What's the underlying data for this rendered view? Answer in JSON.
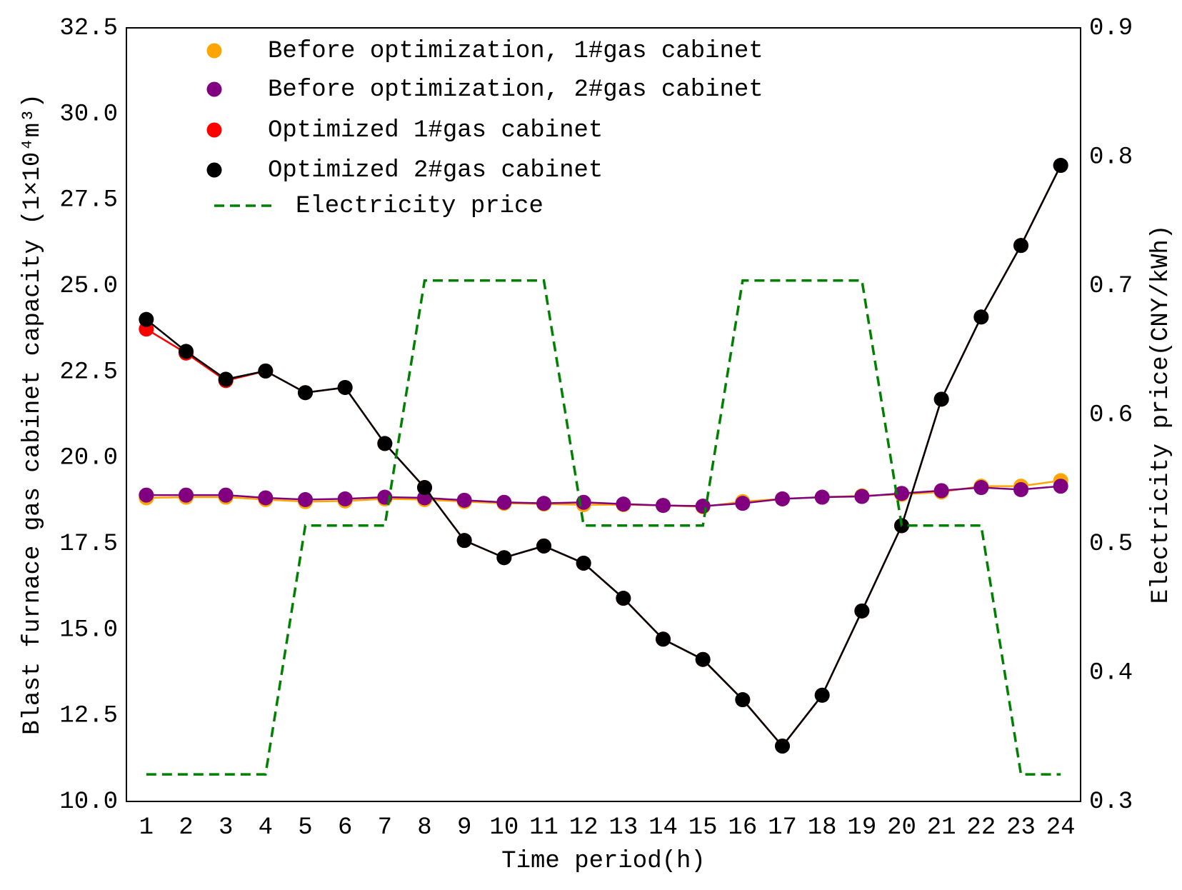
{
  "chart_data": {
    "type": "line",
    "xlabel": "Time period(h)",
    "ylabel": "Blast furnace gas cabinet capacity (1×10⁴m³)",
    "y2label": "Electricity price(CNY/kWh)",
    "x": [
      1,
      2,
      3,
      4,
      5,
      6,
      7,
      8,
      9,
      10,
      11,
      12,
      13,
      14,
      15,
      16,
      17,
      18,
      19,
      20,
      21,
      22,
      23,
      24
    ],
    "xlim": [
      0.5,
      24.5
    ],
    "xticks": [
      1,
      2,
      3,
      4,
      5,
      6,
      7,
      8,
      9,
      10,
      11,
      12,
      13,
      14,
      15,
      16,
      17,
      18,
      19,
      20,
      21,
      22,
      23,
      24
    ],
    "ylim": [
      10,
      32.5
    ],
    "yticks": [
      {
        "value": 10,
        "label": "10.0"
      },
      12.5,
      {
        "value": 15,
        "label": "15.0"
      },
      17.5,
      {
        "value": 20,
        "label": "20.0"
      },
      22.5,
      {
        "value": 25,
        "label": "25.0"
      },
      27.5,
      {
        "value": 30,
        "label": "30.0"
      },
      32.5
    ],
    "y2lim": [
      0.3,
      0.9
    ],
    "y2ticks": [
      0.3,
      0.4,
      0.5,
      0.6,
      0.7,
      0.8,
      0.9
    ],
    "grid": false,
    "legend": "upper left",
    "series": [
      {
        "name": "Before optimization, 1#gas cabinet",
        "color": "#ffa500",
        "marker": "o",
        "values": [
          18.83,
          18.85,
          18.85,
          18.78,
          18.72,
          18.74,
          18.8,
          18.78,
          18.72,
          18.67,
          18.65,
          18.63,
          18.63,
          18.61,
          18.57,
          18.72,
          18.8,
          18.85,
          18.89,
          18.93,
          19.0,
          19.17,
          19.17,
          19.33
        ]
      },
      {
        "name": "Before optimization, 2#gas cabinet",
        "color": "#800080",
        "marker": "o",
        "values": [
          18.91,
          18.91,
          18.91,
          18.83,
          18.78,
          18.8,
          18.85,
          18.83,
          18.76,
          18.7,
          18.67,
          18.7,
          18.65,
          18.61,
          18.59,
          18.67,
          18.8,
          18.85,
          18.87,
          18.96,
          19.04,
          19.13,
          19.07,
          19.17
        ]
      },
      {
        "name": "Optimized 1#gas cabinet",
        "color": "#ff0000",
        "marker": "o",
        "values": [
          23.74,
          23.04,
          22.24,
          22.52,
          21.89,
          22.04,
          20.41,
          19.13,
          17.59,
          17.09,
          17.43,
          16.93,
          15.91,
          14.72,
          14.13,
          12.96,
          11.61,
          13.09,
          15.54,
          18.02,
          21.7,
          24.09,
          26.17,
          28.5
        ]
      },
      {
        "name": "Optimized 2#gas cabinet",
        "color": "#000000",
        "marker": "o",
        "values": [
          24.02,
          23.09,
          22.28,
          22.52,
          21.89,
          22.04,
          20.41,
          19.13,
          17.59,
          17.09,
          17.43,
          16.93,
          15.91,
          14.72,
          14.13,
          12.96,
          11.61,
          13.09,
          15.54,
          18.02,
          21.7,
          24.09,
          26.17,
          28.5
        ]
      },
      {
        "name": "Electricity price",
        "color": "#008000",
        "linestyle": "dashed",
        "axis": "y2",
        "values": [
          0.321,
          0.321,
          0.321,
          0.321,
          0.514,
          0.514,
          0.514,
          0.704,
          0.704,
          0.704,
          0.704,
          0.514,
          0.514,
          0.514,
          0.514,
          0.704,
          0.704,
          0.704,
          0.704,
          0.514,
          0.514,
          0.514,
          0.321,
          0.321
        ]
      }
    ]
  }
}
